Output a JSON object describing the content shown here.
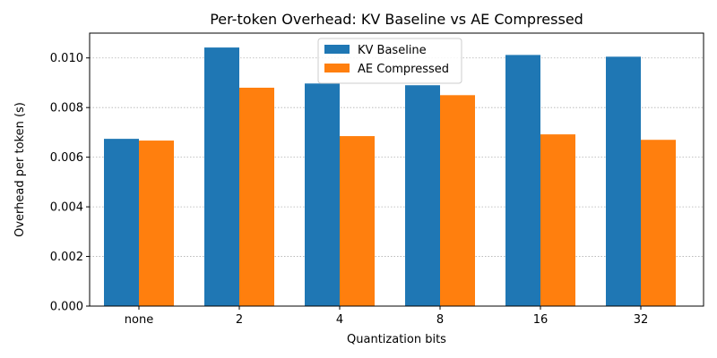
{
  "chart_data": {
    "type": "bar",
    "title": "Per-token Overhead: KV Baseline vs AE Compressed",
    "xlabel": "Quantization bits",
    "ylabel": "Overhead per token (s)",
    "categories": [
      "none",
      "2",
      "4",
      "8",
      "16",
      "32"
    ],
    "series": [
      {
        "name": "KV Baseline",
        "color": "#1f77b4",
        "values": [
          0.00674,
          0.01042,
          0.00897,
          0.0089,
          0.01012,
          0.01005
        ]
      },
      {
        "name": "AE Compressed",
        "color": "#ff7f0e",
        "values": [
          0.00667,
          0.0088,
          0.00685,
          0.0085,
          0.00692,
          0.0067
        ]
      }
    ],
    "ylim": [
      0,
      0.011
    ],
    "yticks": [
      "0.000",
      "0.002",
      "0.004",
      "0.006",
      "0.008",
      "0.010"
    ],
    "grid": "y",
    "legend_position": "top-center"
  }
}
